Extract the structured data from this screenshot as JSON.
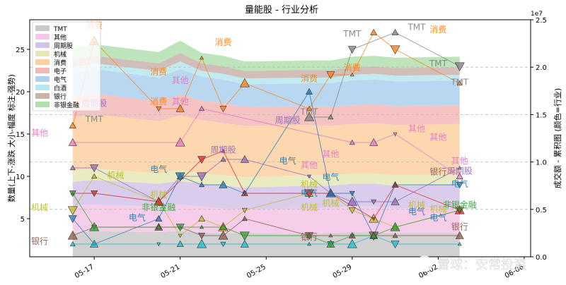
{
  "chart_data": {
    "type": "area",
    "title": "量能股 - 行业分析",
    "ylabel_left": "数量(上下-涨跌 大小-幅度 标注-强势)",
    "ylabel_right": "成交额 - 累积图 (颜色=行业)",
    "right_axis_exponent": "1e7",
    "ylim_left": [
      0.5,
      28.5
    ],
    "ylim_right": [
      0,
      2.5
    ],
    "left_ticks": [
      5,
      10,
      15,
      20,
      25
    ],
    "right_ticks": [
      0.0,
      0.5,
      1.0,
      1.5,
      2.0,
      2.5
    ],
    "x_dates": [
      "05-16",
      "05-17",
      "05-20",
      "05-21",
      "05-22",
      "05-23",
      "05-24",
      "05-27",
      "05-28",
      "05-29",
      "05-30",
      "05-31",
      "06-03"
    ],
    "x_tick_labels": [
      "05-17",
      "05-21",
      "05-25",
      "05-29",
      "06-02",
      "06-06"
    ],
    "x_tick_dates": [
      "05-17",
      "05-21",
      "05-25",
      "05-29",
      "06-02",
      "06-06"
    ],
    "grid": "horizontal dashed",
    "legend_position": "top-left",
    "series": [
      {
        "name": "TMT",
        "color": "#c9c9c9",
        "line_color": "#7f7f7f",
        "amount": [
          0.26,
          0.27,
          0.26,
          0.27,
          0.26,
          0.25,
          0.25,
          0.24,
          0.25,
          0.26,
          0.26,
          0.25,
          0.25
        ],
        "count": [
          null,
          null,
          null,
          null,
          null,
          null,
          null,
          17,
          17,
          25,
          null,
          27,
          23
        ]
      },
      {
        "name": "其他",
        "color": "#f5c6e6",
        "line_color": "#e377c2",
        "amount": [
          0.28,
          0.28,
          0.27,
          0.28,
          0.27,
          0.26,
          0.25,
          0.27,
          0.27,
          0.27,
          0.27,
          0.26,
          0.27
        ],
        "count": [
          14,
          null,
          null,
          14,
          18,
          null,
          null,
          null,
          null,
          14,
          14,
          15,
          10
        ]
      },
      {
        "name": "周期股",
        "color": "#d4c4e8",
        "line_color": "#9467bd",
        "amount": [
          0.25,
          0.26,
          0.24,
          0.25,
          0.24,
          0.24,
          0.23,
          0.24,
          0.23,
          0.24,
          0.24,
          0.24,
          0.24
        ],
        "count": [
          11,
          11,
          7,
          10,
          10,
          12,
          12,
          10,
          8,
          7,
          7,
          7,
          11
        ]
      },
      {
        "name": "机械",
        "color": "#e5e8b5",
        "line_color": "#bcbd22",
        "amount": [
          0.12,
          0.12,
          0.11,
          0.12,
          0.11,
          0.11,
          0.11,
          0.11,
          0.11,
          0.11,
          0.11,
          0.11,
          0.11
        ],
        "count": [
          6,
          10,
          7,
          3,
          5,
          4,
          6,
          8,
          8,
          6,
          5,
          4,
          6
        ]
      },
      {
        "name": "消费",
        "color": "#fdd0a2",
        "line_color": "#ff7f0e",
        "amount": [
          0.56,
          0.57,
          0.55,
          0.57,
          0.56,
          0.55,
          0.54,
          0.53,
          0.52,
          0.52,
          0.53,
          0.53,
          0.53
        ],
        "count": [
          16,
          26,
          18,
          18,
          24,
          18,
          21,
          18,
          22,
          22,
          27,
          25,
          21
        ]
      },
      {
        "name": "电子",
        "color": "#f4b8b8",
        "line_color": "#d62728",
        "amount": [
          0.22,
          0.22,
          0.21,
          0.22,
          0.21,
          0.21,
          0.2,
          0.2,
          0.2,
          0.2,
          0.2,
          0.2,
          0.2
        ],
        "count": [
          8,
          8,
          7,
          null,
          12,
          13,
          8,
          8,
          8,
          null,
          5,
          9,
          6
        ]
      },
      {
        "name": "电气",
        "color": "#aed0ee",
        "line_color": "#1f77b4",
        "amount": [
          0.25,
          0.26,
          0.25,
          0.27,
          0.25,
          0.25,
          0.24,
          0.24,
          0.25,
          0.26,
          0.26,
          0.26,
          0.26
        ],
        "count": [
          5,
          2,
          5,
          10,
          9,
          9,
          8,
          20,
          8,
          8,
          3,
          9,
          9
        ]
      },
      {
        "name": "白酒",
        "color": "#b7e6ef",
        "line_color": "#17becf",
        "amount": [
          0.06,
          0.06,
          0.07,
          0.08,
          0.06,
          0.06,
          0.06,
          0.06,
          0.06,
          0.06,
          0.06,
          0.06,
          0.06
        ],
        "count": [
          2,
          2,
          2,
          2,
          2,
          2,
          2,
          2,
          2,
          2,
          3,
          2,
          2
        ]
      },
      {
        "name": "银行",
        "color": "#c9b3ad",
        "line_color": "#8c564b",
        "amount": [
          0.08,
          0.08,
          0.08,
          0.09,
          0.08,
          0.08,
          0.08,
          0.08,
          0.08,
          0.08,
          0.08,
          0.08,
          0.08
        ],
        "count": [
          3,
          4,
          4,
          4,
          3,
          3,
          5,
          3,
          3,
          3,
          3,
          3,
          3
        ]
      },
      {
        "name": "非银金融",
        "color": "#b2dfae",
        "line_color": "#2ca02c",
        "amount": [
          0.12,
          0.12,
          0.12,
          0.13,
          0.11,
          0.11,
          0.1,
          0.1,
          0.1,
          0.11,
          0.11,
          0.11,
          0.11
        ],
        "count": [
          8,
          4,
          4,
          4,
          4,
          4,
          3,
          3,
          2,
          3,
          3,
          4,
          6
        ]
      }
    ],
    "annotations": [
      {
        "text": "消费",
        "date": "05-17",
        "y": 27.5,
        "series": "消费"
      },
      {
        "text": "消费",
        "date": "05-20",
        "y": 22.0,
        "series": "消费"
      },
      {
        "text": "其他",
        "date": "05-21",
        "y": 21.0,
        "series": "其他"
      },
      {
        "text": "消费",
        "date": "05-23",
        "y": 25.5,
        "series": "消费"
      },
      {
        "text": "周期股",
        "date": "05-17",
        "y": 18.3,
        "series": "周期股"
      },
      {
        "text": "消费",
        "date": "05-20",
        "y": 18.5,
        "series": "消费"
      },
      {
        "text": "其他",
        "date": "05-21",
        "y": 18.5,
        "series": "其他"
      },
      {
        "text": "TMT",
        "date": "05-17",
        "y": 16.4,
        "series": "TMT"
      },
      {
        "text": "其他",
        "date": "05-14",
        "y": 14.8,
        "series": "其他"
      },
      {
        "text": "周期股",
        "date": "05-23",
        "y": 12.8,
        "series": "周期股"
      },
      {
        "text": "电气",
        "date": "05-20",
        "y": 10.5,
        "series": "电气"
      },
      {
        "text": "机械",
        "date": "05-18",
        "y": 9.8,
        "series": "机械"
      },
      {
        "text": "机械",
        "date": "05-20",
        "y": 7.5,
        "series": "机械"
      },
      {
        "text": "非银金融",
        "date": "05-20",
        "y": 6.0,
        "series": "非银金融"
      },
      {
        "text": "电气",
        "date": "05-19",
        "y": 4.8,
        "series": "电气"
      },
      {
        "text": "机械",
        "date": "05-14",
        "y": 6.0,
        "series": "机械"
      },
      {
        "text": "银行",
        "date": "05-14",
        "y": 2.0,
        "series": "银行"
      },
      {
        "text": "消费",
        "date": "05-27",
        "y": 21.2,
        "series": "消费"
      },
      {
        "text": "TMT",
        "date": "05-27",
        "y": 17.3,
        "series": "TMT"
      },
      {
        "text": "周期股",
        "date": "05-26",
        "y": 16.3,
        "series": "周期股"
      },
      {
        "text": "电气",
        "date": "05-26",
        "y": 11.5,
        "series": "电气"
      },
      {
        "text": "机械",
        "date": "05-27",
        "y": 6.0,
        "series": "机械"
      },
      {
        "text": "电气",
        "date": "05-27",
        "y": 7.7,
        "series": "电气"
      },
      {
        "text": "机械",
        "date": "05-27",
        "y": 8.7,
        "series": "机械"
      },
      {
        "text": "其他",
        "date": "05-27",
        "y": 11.0,
        "series": "其他"
      },
      {
        "text": "其他",
        "date": "05-28",
        "y": 12.3,
        "series": "其他"
      },
      {
        "text": "电气",
        "date": "05-28",
        "y": 9.6,
        "series": "电气"
      },
      {
        "text": "银行",
        "date": "05-27",
        "y": 2.5,
        "series": "银行"
      },
      {
        "text": "机械",
        "date": "05-28",
        "y": 6.5,
        "series": "机械"
      },
      {
        "text": "消费",
        "date": "05-29",
        "y": 22.5,
        "series": "消费"
      },
      {
        "text": "TMT",
        "date": "05-29",
        "y": 26.5,
        "series": "TMT"
      },
      {
        "text": "其他",
        "date": "06-01",
        "y": 15.3,
        "series": "其他"
      },
      {
        "text": "机械",
        "date": "06-01",
        "y": 6.3,
        "series": "机械"
      },
      {
        "text": "电气",
        "date": "06-01",
        "y": 5.5,
        "series": "电气"
      },
      {
        "text": "银行",
        "date": "06-02",
        "y": 10.2,
        "series": "银行"
      },
      {
        "text": "TMT",
        "date": "06-01",
        "y": 27.3,
        "series": "TMT"
      },
      {
        "text": "消费",
        "date": "06-02",
        "y": 27.0,
        "series": "消费"
      },
      {
        "text": "TMT",
        "date": "06-02",
        "y": 23.0,
        "series": "TMT"
      },
      {
        "text": "TMT",
        "date": "06-03",
        "y": 20.8,
        "series": "TMT"
      },
      {
        "text": "其他",
        "date": "06-02",
        "y": 14.3,
        "series": "其他"
      },
      {
        "text": "其他",
        "date": "06-03",
        "y": 11.5,
        "series": "其他"
      },
      {
        "text": "周期股",
        "date": "06-03",
        "y": 10.3,
        "series": "周期股"
      },
      {
        "text": "电气",
        "date": "06-03",
        "y": 8.8,
        "series": "电气"
      },
      {
        "text": "非银金融",
        "date": "06-03",
        "y": 6.3,
        "series": "非银金融"
      },
      {
        "text": "机械",
        "date": "06-02",
        "y": 5.8,
        "series": "机械"
      },
      {
        "text": "银行",
        "date": "06-03",
        "y": 3.7,
        "series": "银行"
      },
      {
        "text": "电气",
        "date": "06-02",
        "y": 4.8,
        "series": "电气"
      }
    ]
  },
  "watermark": "雪球：安常投资"
}
